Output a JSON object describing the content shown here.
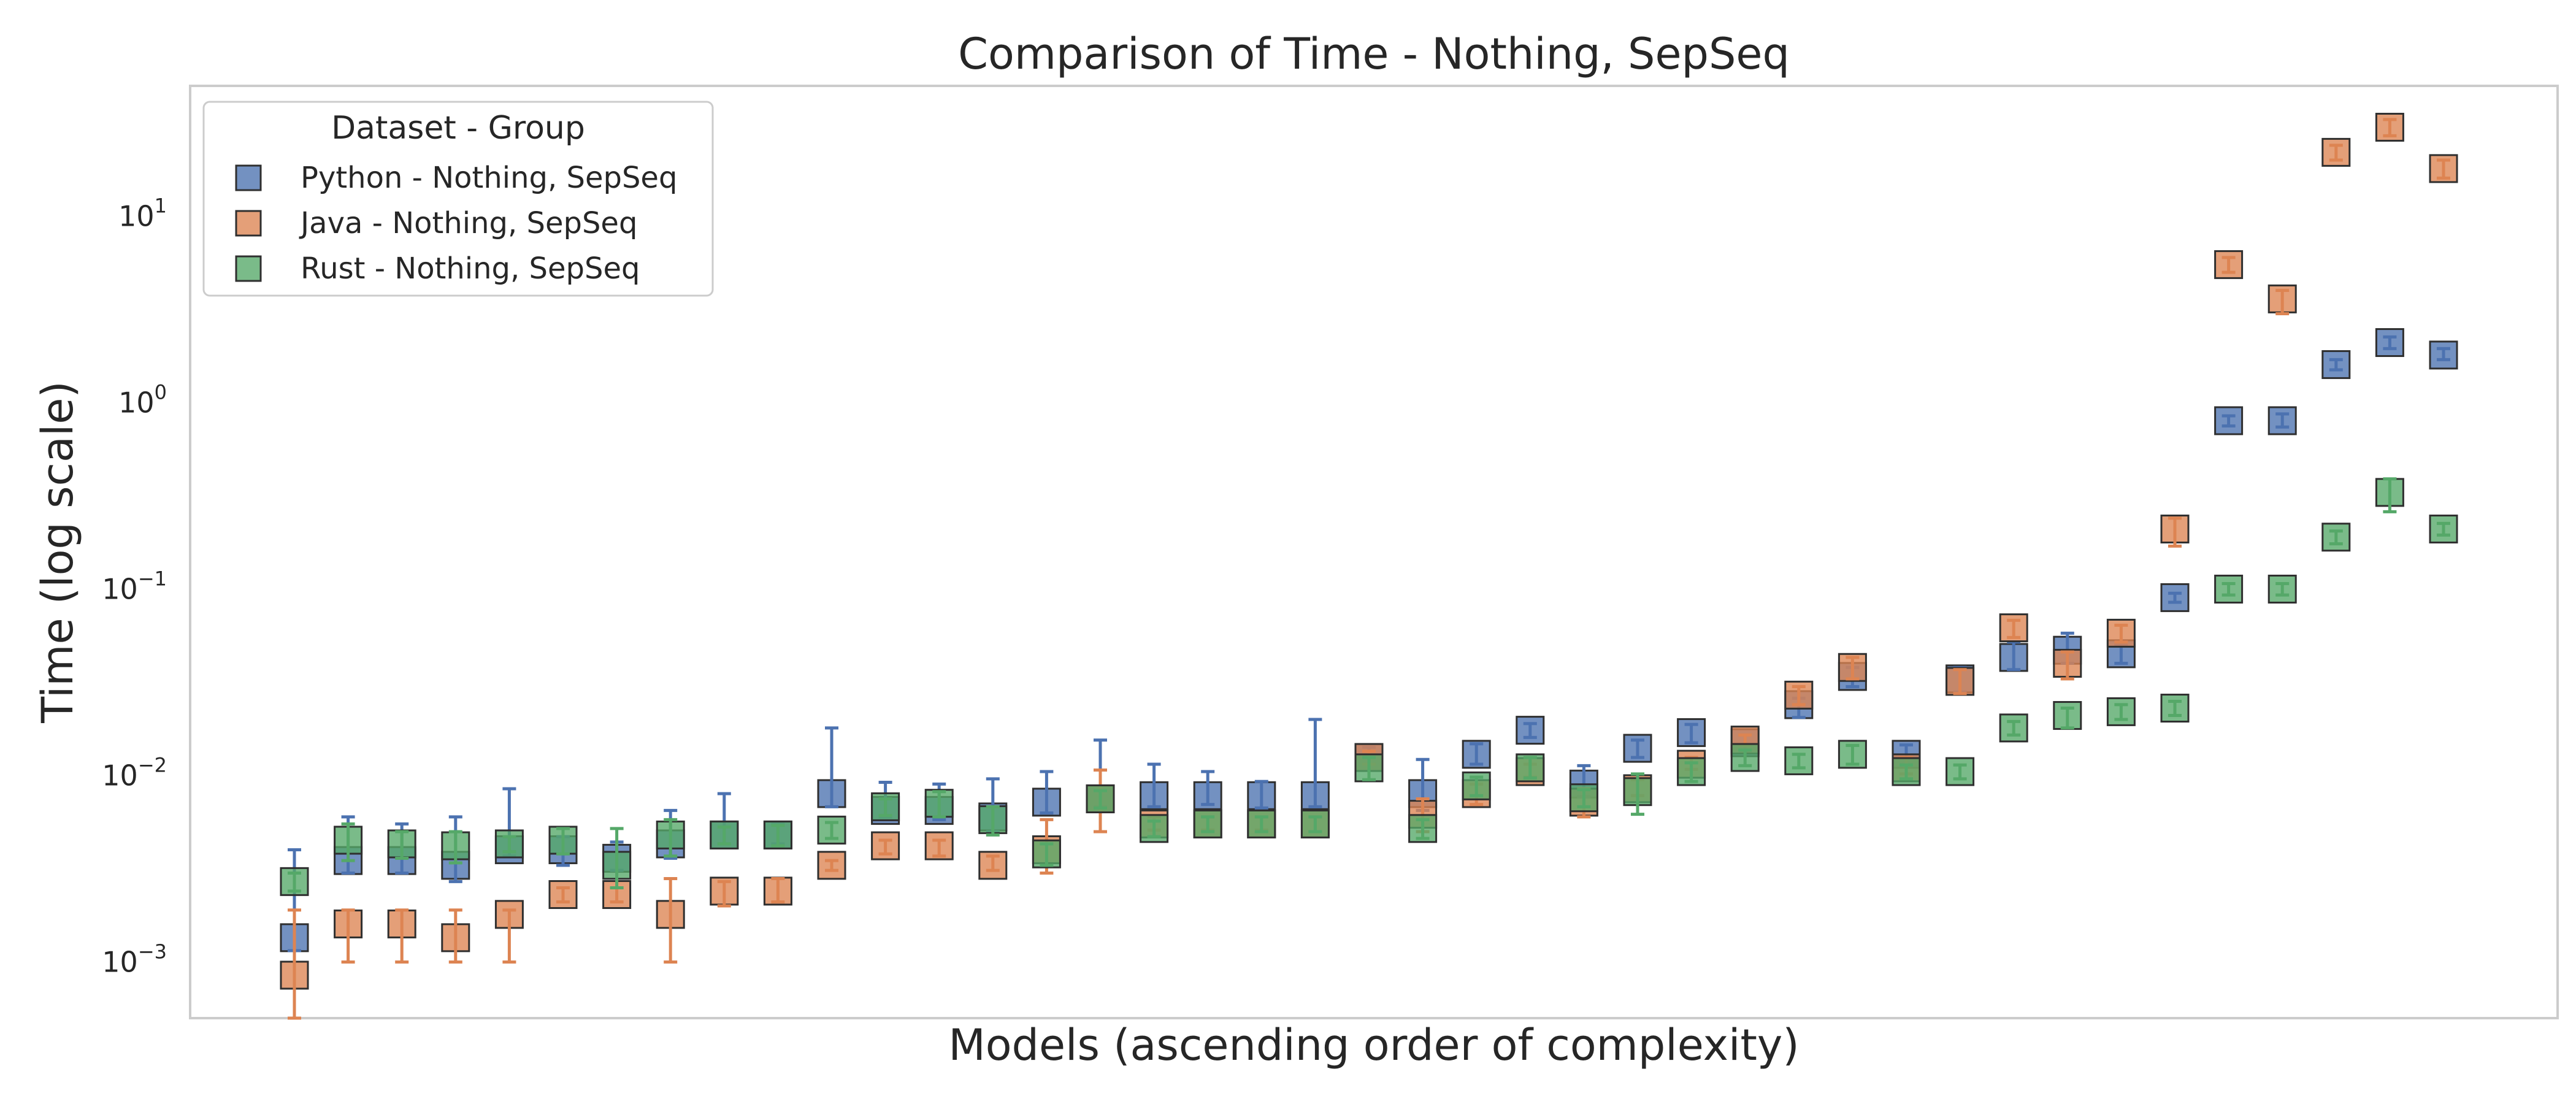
{
  "chart_data": {
    "type": "scatter",
    "title": "Comparison of Time  - Nothing, SepSeq",
    "xlabel": "Models (ascending order of complexity)",
    "ylabel": "Time (log scale)",
    "y_scale": "log",
    "ylim": [
      0.0005,
      50
    ],
    "y_ticks": [
      {
        "value": 0.001,
        "base": "10",
        "exp": "−3"
      },
      {
        "value": 0.01,
        "base": "10",
        "exp": "−2"
      },
      {
        "value": 0.1,
        "base": "10",
        "exp": "−1"
      },
      {
        "value": 1,
        "base": "10",
        "exp": "0"
      },
      {
        "value": 10,
        "base": "10",
        "exp": "1"
      }
    ],
    "x_ticks_shown": false,
    "grid": false,
    "marker": "square",
    "error_bars": true,
    "legend": {
      "title": "Dataset - Group",
      "position": "top-left"
    },
    "series": [
      {
        "name": "Python - Nothing, SepSeq",
        "color": "#4C72B0",
        "values": [
          0.00135,
          0.0035,
          0.0035,
          0.0033,
          0.004,
          0.004,
          0.0036,
          0.0043,
          0.0048,
          0.0048,
          0.008,
          0.0065,
          0.0065,
          0.006,
          0.0072,
          0.0075,
          0.0078,
          0.0078,
          0.0078,
          0.0078,
          0.0125,
          0.008,
          0.013,
          0.0175,
          0.009,
          0.014,
          0.017,
          0.015,
          0.024,
          0.034,
          0.013,
          0.033,
          0.043,
          0.047,
          0.045,
          0.09,
          0.8,
          0.8,
          1.6,
          2.1,
          1.8
        ],
        "err_low": [
          0.00115,
          0.003,
          0.003,
          0.0027,
          0.0037,
          0.0033,
          0.0031,
          0.0036,
          0.0043,
          0.0043,
          0.0068,
          0.006,
          0.0058,
          0.005,
          0.0063,
          0.0068,
          0.0068,
          0.007,
          0.0067,
          0.0068,
          0.0115,
          0.0065,
          0.0115,
          0.016,
          0.0077,
          0.0125,
          0.015,
          0.0135,
          0.0205,
          0.03,
          0.0115,
          0.028,
          0.037,
          0.04,
          0.04,
          0.085,
          0.75,
          0.74,
          1.5,
          1.95,
          1.7
        ],
        "err_high": [
          0.004,
          0.006,
          0.0055,
          0.006,
          0.0085,
          0.0047,
          0.0044,
          0.0065,
          0.008,
          0.0055,
          0.018,
          0.0092,
          0.009,
          0.0096,
          0.0105,
          0.0155,
          0.0115,
          0.0105,
          0.0093,
          0.02,
          0.0142,
          0.0122,
          0.0148,
          0.019,
          0.0113,
          0.0155,
          0.0188,
          0.0165,
          0.026,
          0.038,
          0.0146,
          0.038,
          0.052,
          0.058,
          0.05,
          0.095,
          0.85,
          0.87,
          1.7,
          2.25,
          1.95
        ]
      },
      {
        "name": "Java - Nothing, SepSeq",
        "color": "#DD8452",
        "values": [
          0.00085,
          0.0016,
          0.0016,
          0.00135,
          0.0018,
          0.0023,
          0.0023,
          0.0018,
          0.0024,
          0.0024,
          0.0033,
          0.0042,
          0.0042,
          0.0033,
          0.004,
          0.0075,
          0.0055,
          0.0055,
          0.0055,
          0.0055,
          0.0125,
          0.0062,
          0.008,
          0.0105,
          0.0072,
          0.0085,
          0.0115,
          0.0155,
          0.027,
          0.038,
          0.011,
          0.032,
          0.062,
          0.04,
          0.058,
          0.21,
          5.5,
          3.6,
          22,
          30,
          18
        ],
        "err_low": [
          0.0005,
          0.001,
          0.001,
          0.001,
          0.001,
          0.0021,
          0.0021,
          0.001,
          0.002,
          0.0021,
          0.0031,
          0.0038,
          0.0037,
          0.0031,
          0.003,
          0.005,
          0.0051,
          0.0051,
          0.0051,
          0.005,
          0.0115,
          0.005,
          0.007,
          0.0098,
          0.006,
          0.0078,
          0.0108,
          0.0145,
          0.024,
          0.033,
          0.0102,
          0.0275,
          0.055,
          0.033,
          0.052,
          0.17,
          5.0,
          3.0,
          20,
          27,
          16
        ],
        "err_high": [
          0.0019,
          0.0019,
          0.0019,
          0.0019,
          0.0019,
          0.0025,
          0.0025,
          0.0028,
          0.0027,
          0.0028,
          0.0035,
          0.0045,
          0.0045,
          0.0037,
          0.0058,
          0.0107,
          0.006,
          0.006,
          0.006,
          0.006,
          0.0135,
          0.0075,
          0.009,
          0.0115,
          0.0085,
          0.0095,
          0.0125,
          0.0165,
          0.03,
          0.043,
          0.0125,
          0.037,
          0.068,
          0.046,
          0.064,
          0.24,
          6.0,
          4.0,
          24,
          33,
          20
        ]
      },
      {
        "name": "Rust - Nothing, SepSeq",
        "color": "#55A868",
        "values": [
          0.0027,
          0.0045,
          0.0043,
          0.0042,
          0.0043,
          0.0045,
          0.0033,
          0.0048,
          0.0048,
          0.0048,
          0.0051,
          0.0068,
          0.0071,
          0.0058,
          0.0038,
          0.0075,
          0.0052,
          0.0055,
          0.0055,
          0.0055,
          0.011,
          0.0052,
          0.0088,
          0.011,
          0.0076,
          0.0082,
          0.0105,
          0.0125,
          0.012,
          0.013,
          0.0105,
          0.0105,
          0.018,
          0.021,
          0.022,
          0.023,
          0.1,
          0.1,
          0.19,
          0.33,
          0.21
        ],
        "err_low": [
          0.0024,
          0.0035,
          0.0036,
          0.0034,
          0.0039,
          0.0038,
          0.0025,
          0.0037,
          0.0043,
          0.0042,
          0.0046,
          0.0061,
          0.006,
          0.0048,
          0.0033,
          0.0067,
          0.0047,
          0.005,
          0.005,
          0.005,
          0.0095,
          0.0046,
          0.0078,
          0.0097,
          0.0068,
          0.0062,
          0.0093,
          0.0113,
          0.011,
          0.0115,
          0.0096,
          0.0096,
          0.0165,
          0.018,
          0.02,
          0.021,
          0.093,
          0.093,
          0.175,
          0.26,
          0.195
        ],
        "err_high": [
          0.003,
          0.0055,
          0.005,
          0.005,
          0.0047,
          0.0052,
          0.0052,
          0.0058,
          0.0053,
          0.0054,
          0.0056,
          0.0075,
          0.0082,
          0.0068,
          0.0043,
          0.0083,
          0.0057,
          0.006,
          0.006,
          0.006,
          0.0125,
          0.0058,
          0.0098,
          0.0125,
          0.0084,
          0.0102,
          0.0117,
          0.0137,
          0.013,
          0.0145,
          0.0114,
          0.0114,
          0.0195,
          0.023,
          0.024,
          0.025,
          0.107,
          0.107,
          0.205,
          0.39,
          0.225
        ]
      }
    ]
  }
}
